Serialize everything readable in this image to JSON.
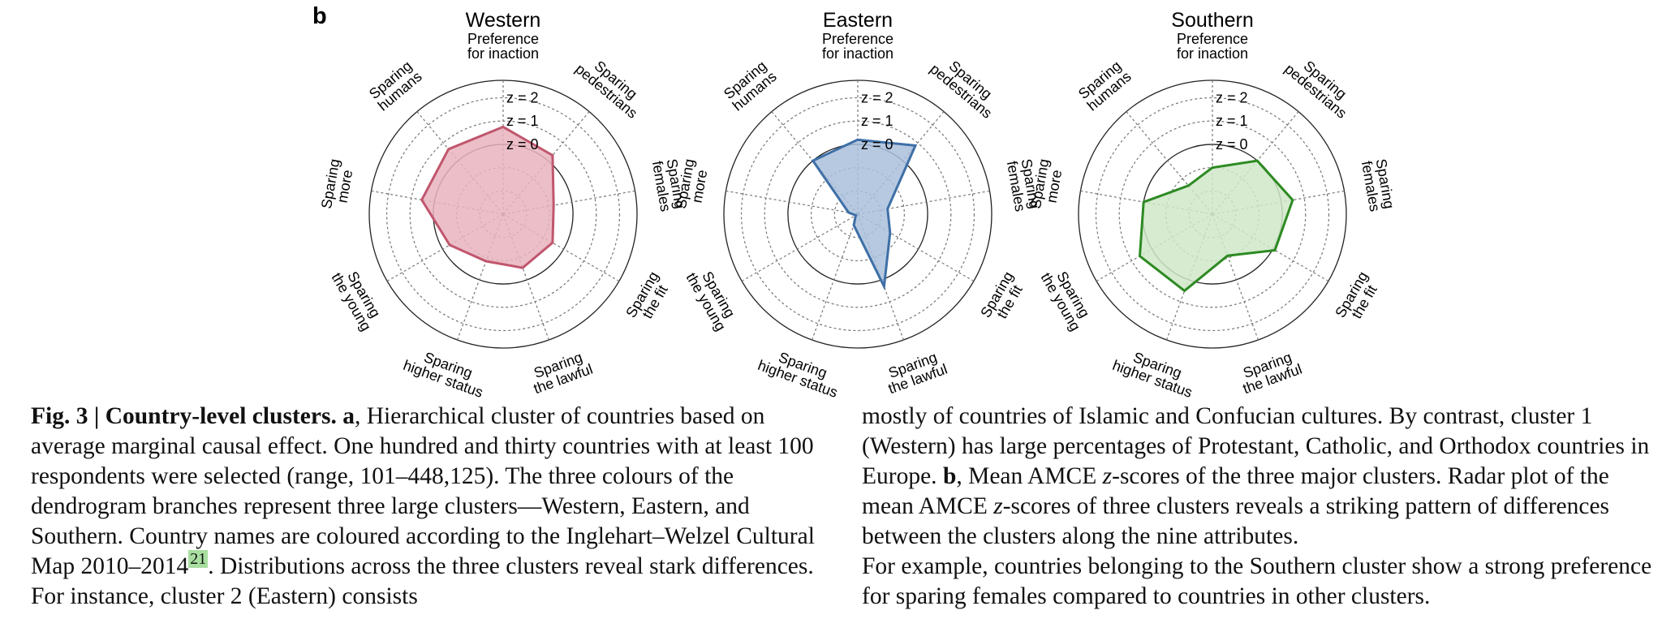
{
  "panel_letter": "b",
  "chart_data": [
    {
      "type": "radar",
      "title": "Western",
      "axes": [
        "Preference for inaction",
        "Sparing pedestrians",
        "Sparing females",
        "Sparing the fit",
        "Sparing the lawful",
        "Sparing higher status",
        "Sparing the young",
        "Sparing more",
        "Sparing humans"
      ],
      "axis_label_lines": [
        [
          "Preference",
          "for inaction"
        ],
        [
          "Sparing",
          "pedestrians"
        ],
        [
          "Sparing",
          "females"
        ],
        [
          "Sparing",
          "the fit"
        ],
        [
          "Sparing",
          "the lawful"
        ],
        [
          "Sparing",
          "higher status"
        ],
        [
          "Sparing",
          "the young"
        ],
        [
          "Sparing",
          "more"
        ],
        [
          "Sparing",
          "humans"
        ]
      ],
      "ring_labels": [
        "z = 0",
        "z = 1",
        "z = 2"
      ],
      "rings": [
        -2,
        -1,
        0,
        1,
        2
      ],
      "rlim": [
        -3,
        2.75
      ],
      "values": [
        0.75,
        0.3,
        -0.8,
        -0.55,
        -0.55,
        -0.85,
        -0.35,
        0.55,
        0.65
      ],
      "color": "#c0566e",
      "fill": "#e9b3be"
    },
    {
      "type": "radar",
      "title": "Eastern",
      "axes": [
        "Preference for inaction",
        "Sparing pedestrians",
        "Sparing females",
        "Sparing the fit",
        "Sparing the lawful",
        "Sparing higher status",
        "Sparing the young",
        "Sparing more",
        "Sparing humans"
      ],
      "axis_label_lines": [
        [
          "Preference",
          "for inaction"
        ],
        [
          "Sparing",
          "pedestrians"
        ],
        [
          "Sparing",
          "females"
        ],
        [
          "Sparing",
          "the fit"
        ],
        [
          "Sparing",
          "the lawful"
        ],
        [
          "Sparing",
          "higher status"
        ],
        [
          "Sparing",
          "the young"
        ],
        [
          "Sparing",
          "more"
        ],
        [
          "Sparing",
          "humans"
        ]
      ],
      "ring_labels": [
        "z = 0",
        "z = 1",
        "z = 2"
      ],
      "rings": [
        -2,
        -1,
        0,
        1,
        2
      ],
      "rlim": [
        -3,
        2.75
      ],
      "values": [
        0.2,
        0.85,
        -1.7,
        -1.4,
        0.3,
        -2.5,
        -2.9,
        -2.6,
        0.0
      ],
      "color": "#3e6fa6",
      "fill": "#a9bfdc"
    },
    {
      "type": "radar",
      "title": "Southern",
      "axes": [
        "Preference for inaction",
        "Sparing pedestrians",
        "Sparing females",
        "Sparing the fit",
        "Sparing the lawful",
        "Sparing higher status",
        "Sparing the young",
        "Sparing more",
        "Sparing humans"
      ],
      "axis_label_lines": [
        [
          "Preference",
          "for inaction"
        ],
        [
          "Sparing",
          "pedestrians"
        ],
        [
          "Sparing",
          "females"
        ],
        [
          "Sparing",
          "the fit"
        ],
        [
          "Sparing",
          "the lawful"
        ],
        [
          "Sparing",
          "higher status"
        ],
        [
          "Sparing",
          "the young"
        ],
        [
          "Sparing",
          "more"
        ],
        [
          "Sparing",
          "humans"
        ]
      ],
      "ring_labels": [
        "z = 0",
        "z = 1",
        "z = 2"
      ],
      "rings": [
        -2,
        -1,
        0,
        1,
        2
      ],
      "rlim": [
        -3,
        2.75
      ],
      "values": [
        -1.0,
        0.0,
        0.5,
        0.1,
        -1.1,
        0.5,
        0.6,
        0.0,
        -1.4
      ],
      "color": "#2d8a22",
      "fill": "#cfe7c8"
    }
  ],
  "caption": {
    "fig_label": "Fig. 3 | Country-level clusters.",
    "col1": {
      "a_label": "a",
      "text_1": ", Hierarchical cluster of countries based on average marginal causal effect. One hundred and thirty countries with at least 100 respondents were selected (range, 101–448,125). The three colours of the dendrogram branches represent three large clusters—Western, Eastern, and Southern. Country names are coloured according to the Inglehart–Welzel Cultural Map 2010–2014",
      "ref": "21",
      "text_2": ". Distributions across the three clusters reveal stark differences. For instance, cluster 2 (Eastern) consists"
    },
    "col2": {
      "text_1": "mostly of countries of Islamic and Confucian cultures. By contrast, cluster 1 (Western) has large percentages of Protestant, Catholic, and Orthodox countries in Europe. ",
      "b_label": "b",
      "text_2": ", Mean AMCE ",
      "z1": "z",
      "text_3": "-scores of the three major clusters. Radar plot of the mean AMCE ",
      "z2": "z",
      "text_4": "-scores of three clusters reveals a striking pattern of differences between the clusters along the nine attributes.",
      "text_5": "For example, countries belonging to the Southern cluster show a strong preference for sparing females compared to countries in other clusters."
    }
  }
}
